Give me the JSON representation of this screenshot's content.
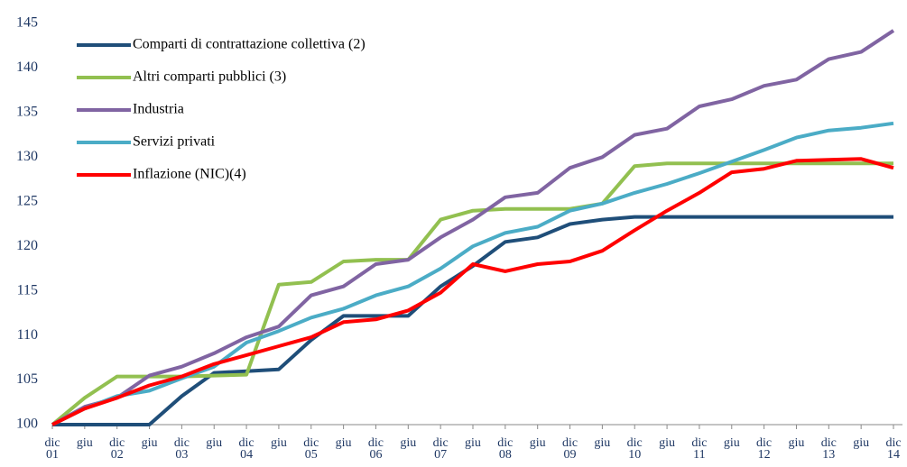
{
  "chart_data": {
    "type": "line",
    "categories": [
      "dic 01",
      "giu",
      "dic 02",
      "giu",
      "dic 03",
      "giu",
      "dic 04",
      "giu",
      "dic 05",
      "giu",
      "dic 06",
      "giu",
      "dic 07",
      "giu",
      "dic 08",
      "giu",
      "dic 09",
      "giu",
      "dic 10",
      "giu",
      "dic 11",
      "giu",
      "dic 12",
      "giu",
      "dic 13",
      "giu",
      "dic 14"
    ],
    "ylim": [
      100,
      145
    ],
    "yticks": [
      100,
      105,
      110,
      115,
      120,
      125,
      130,
      135,
      140,
      145
    ],
    "grid": false,
    "legend": "top-left",
    "series": [
      {
        "name": "Comparti di contrattazione collettiva (2)",
        "color": "#1f4e79",
        "values": [
          100,
          100,
          100,
          100,
          103.2,
          105.8,
          106,
          106.2,
          109.5,
          112.2,
          112.2,
          112.2,
          115.5,
          117.8,
          120.5,
          121,
          122.5,
          123,
          123.3,
          123.3,
          123.3,
          123.3,
          123.3,
          123.3,
          123.3,
          123.3,
          123.3
        ]
      },
      {
        "name": "Altri comparti pubblici (3)",
        "color": "#92c050",
        "values": [
          100,
          103,
          105.4,
          105.4,
          105.4,
          105.5,
          105.6,
          115.7,
          116,
          118.3,
          118.5,
          118.5,
          123,
          124,
          124.2,
          124.2,
          124.2,
          124.8,
          129,
          129.3,
          129.3,
          129.3,
          129.3,
          129.3,
          129.3,
          129.3,
          129.3
        ]
      },
      {
        "name": "Industria",
        "color": "#8064a2",
        "values": [
          100,
          102,
          103,
          105.5,
          106.5,
          108,
          109.8,
          111,
          114.5,
          115.5,
          118,
          118.5,
          121,
          123,
          125.5,
          126,
          128.8,
          130,
          132.5,
          133.2,
          135.7,
          136.5,
          138,
          138.7,
          141,
          141.8,
          144.2
        ]
      },
      {
        "name": "Servizi privati",
        "color": "#4bacc6",
        "values": [
          100,
          101.8,
          103.2,
          103.8,
          105.2,
          106.5,
          109.2,
          110.5,
          112,
          113,
          114.5,
          115.5,
          117.5,
          120,
          121.5,
          122.2,
          124,
          124.8,
          126,
          127,
          128.2,
          129.5,
          130.8,
          132.2,
          133,
          133.3,
          133.8
        ]
      },
      {
        "name": "Inflazione (NIC)(4)",
        "color": "#ff0000",
        "values": [
          100,
          101.8,
          103,
          104.4,
          105.4,
          106.8,
          107.8,
          108.8,
          109.8,
          111.5,
          111.8,
          112.8,
          114.8,
          118,
          117.2,
          118,
          118.3,
          119.5,
          121.8,
          124,
          126,
          128.3,
          128.7,
          129.6,
          129.7,
          129.8,
          128.8
        ]
      }
    ]
  }
}
